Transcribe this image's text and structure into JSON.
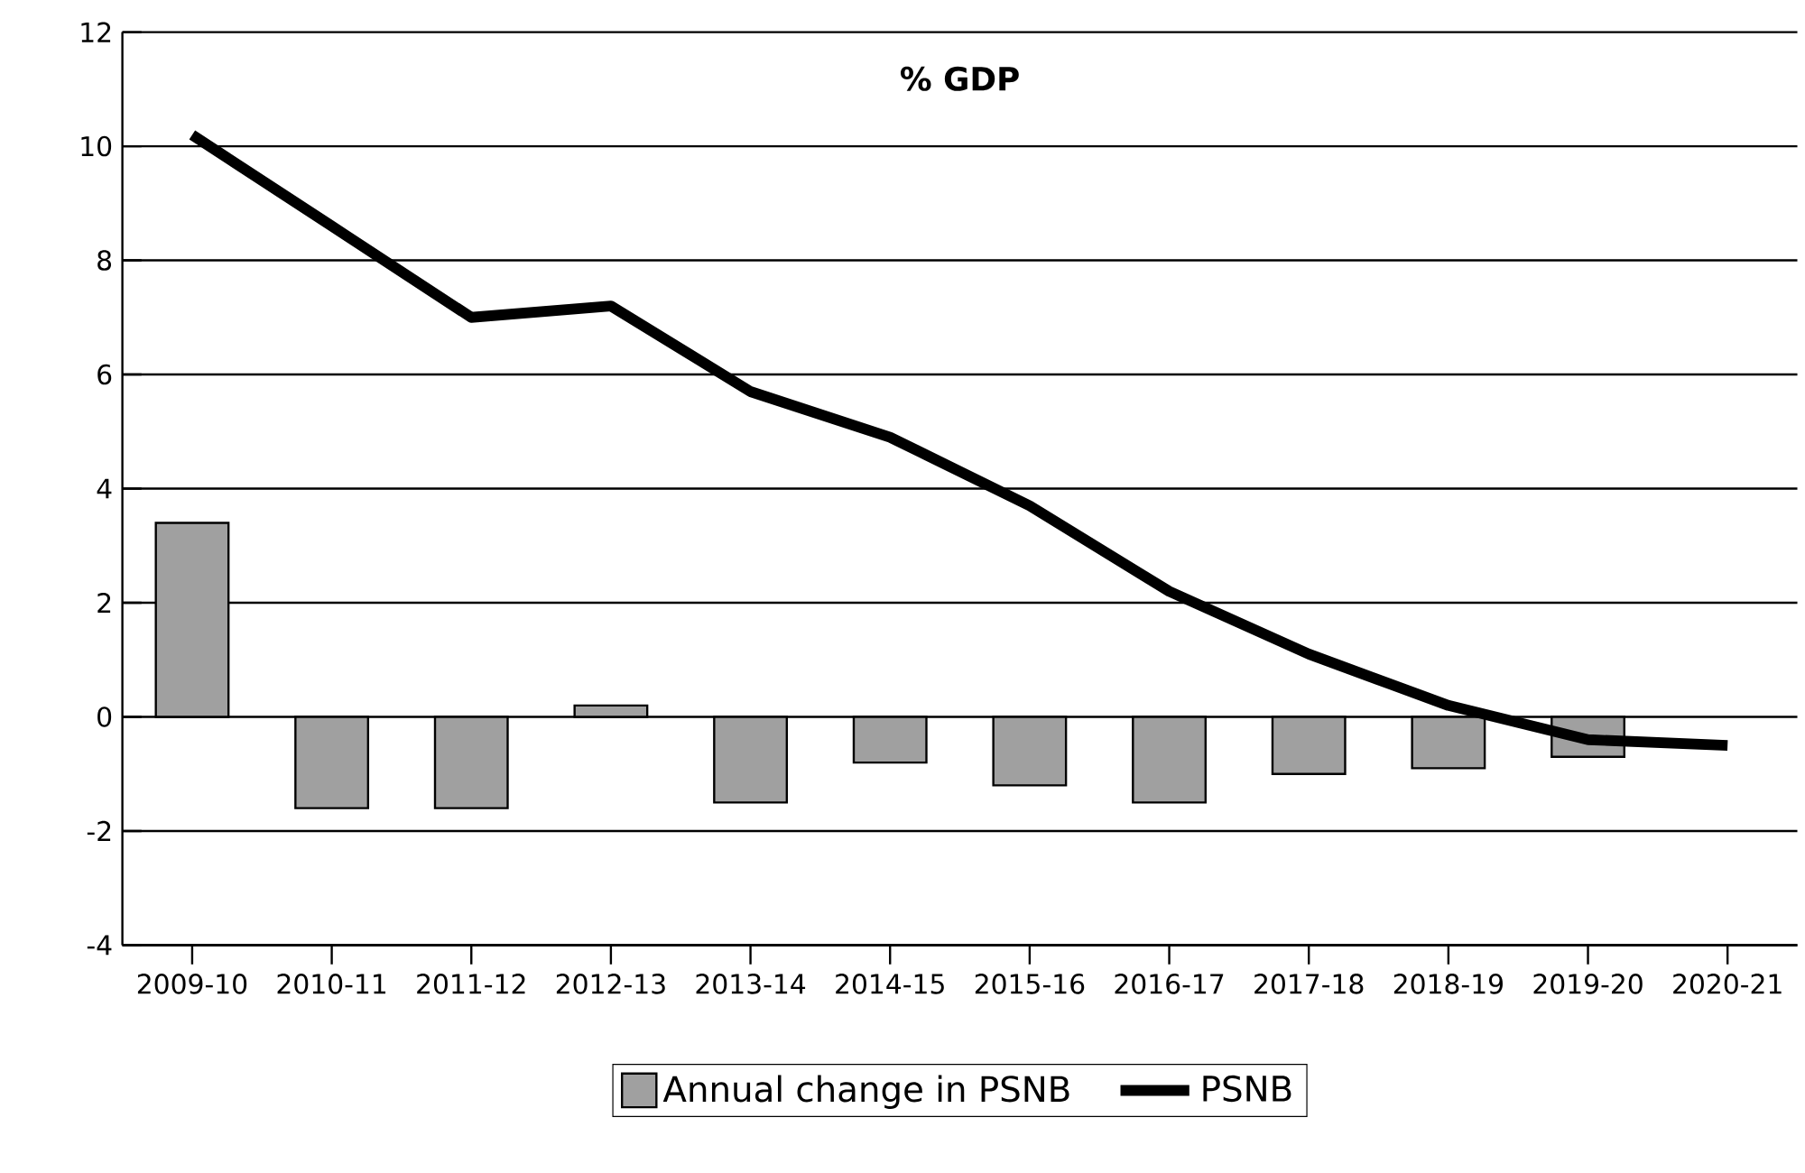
{
  "chart_data": {
    "type": "bar",
    "title": "% GDP",
    "categories": [
      "2009-10",
      "2010-11",
      "2011-12",
      "2012-13",
      "2013-14",
      "2014-15",
      "2015-16",
      "2016-17",
      "2017-18",
      "2018-19",
      "2019-20",
      "2020-21"
    ],
    "series": [
      {
        "name": "Annual change in PSNB",
        "color": "#a0a0a0",
        "values": [
          3.4,
          -1.6,
          -1.6,
          0.2,
          -1.5,
          -0.8,
          -1.2,
          -1.5,
          -1.0,
          -0.9,
          -0.7,
          null
        ]
      },
      {
        "name": "PSNB",
        "type": "line",
        "color": "#000000",
        "values": [
          10.2,
          8.6,
          7.0,
          7.2,
          5.7,
          4.9,
          3.7,
          2.2,
          1.1,
          0.2,
          -0.4,
          -0.5
        ]
      }
    ],
    "ylim": [
      -4,
      12
    ],
    "yticks": [
      -4,
      -2,
      0,
      2,
      4,
      6,
      8,
      10,
      12
    ],
    "grid": "y",
    "legend": "bottom"
  }
}
